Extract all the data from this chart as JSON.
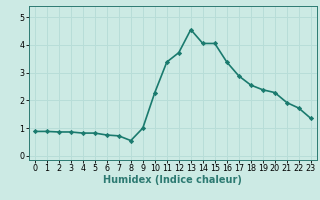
{
  "x": [
    0,
    1,
    2,
    3,
    4,
    5,
    6,
    7,
    8,
    9,
    10,
    11,
    12,
    13,
    14,
    15,
    16,
    17,
    18,
    19,
    20,
    21,
    22,
    23
  ],
  "y": [
    0.88,
    0.88,
    0.86,
    0.86,
    0.82,
    0.82,
    0.75,
    0.72,
    0.55,
    1.0,
    2.28,
    3.38,
    3.72,
    4.55,
    4.05,
    4.05,
    3.38,
    2.88,
    2.55,
    2.38,
    2.28,
    1.92,
    1.72,
    1.35
  ],
  "line_color": "#1a7a6e",
  "marker": "D",
  "marker_size": 2.2,
  "xlabel": "Humidex (Indice chaleur)",
  "xlabel_fontsize": 7,
  "xlabel_weight": "bold",
  "ylim": [
    -0.15,
    5.4
  ],
  "xlim": [
    -0.5,
    23.5
  ],
  "yticks": [
    0,
    1,
    2,
    3,
    4,
    5
  ],
  "xticks": [
    0,
    1,
    2,
    3,
    4,
    5,
    6,
    7,
    8,
    9,
    10,
    11,
    12,
    13,
    14,
    15,
    16,
    17,
    18,
    19,
    20,
    21,
    22,
    23
  ],
  "grid_color": "#b8ddd8",
  "bg_color": "#cceae4",
  "tick_fontsize": 5.8,
  "linewidth": 1.2,
  "spine_color": "#2d7a72"
}
